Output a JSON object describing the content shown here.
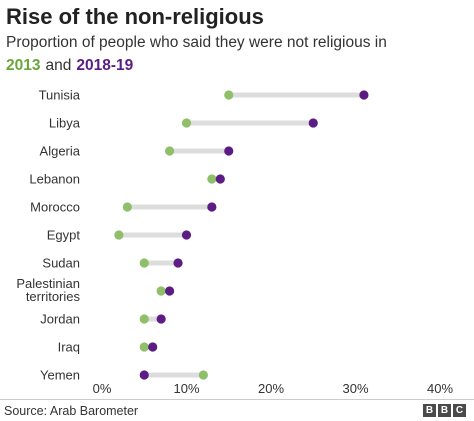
{
  "header": {
    "title": "Rise of the non-religious",
    "subtitle": "Proportion of people who said they were not religious in",
    "legend_2013": "2013",
    "legend_join": "and",
    "legend_2018": "2018-19"
  },
  "footer": {
    "source": "Source: Arab Barometer",
    "logo_letters": [
      "B",
      "B",
      "C"
    ]
  },
  "colors": {
    "series_2013": "#8fbf69",
    "series_2018": "#5b1d83",
    "connector": "#dddddd"
  },
  "chart_data": {
    "type": "dumbbell",
    "title": "Rise of the non-religious",
    "xlim": [
      0,
      40
    ],
    "x_ticks": [
      "0%",
      "10%",
      "20%",
      "30%",
      "40%"
    ],
    "x_tick_values": [
      0,
      10,
      20,
      30,
      40
    ],
    "categories": [
      [
        "Tunisia"
      ],
      [
        "Libya"
      ],
      [
        "Algeria"
      ],
      [
        "Lebanon"
      ],
      [
        "Morocco"
      ],
      [
        "Egypt"
      ],
      [
        "Sudan"
      ],
      [
        "Palestinian",
        "territories"
      ],
      [
        "Jordan"
      ],
      [
        "Iraq"
      ],
      [
        "Yemen"
      ]
    ],
    "series": [
      {
        "name": "2013",
        "values": [
          15,
          10,
          8,
          13,
          3,
          2,
          5,
          7,
          5,
          5,
          12
        ]
      },
      {
        "name": "2018-19",
        "values": [
          31,
          25,
          15,
          14,
          13,
          10,
          9,
          8,
          7,
          6,
          5
        ]
      }
    ],
    "grid": false
  }
}
